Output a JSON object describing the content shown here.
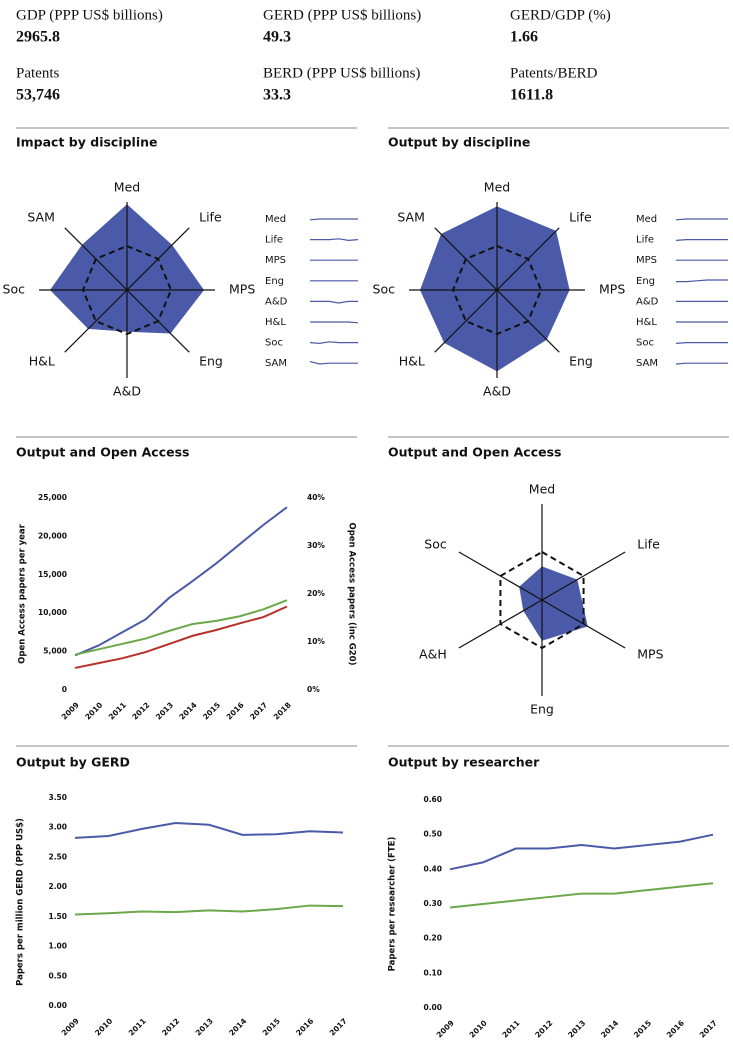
{
  "stats": [
    {
      "label": "GDP (PPP US$ billions)",
      "value": "2965.8"
    },
    {
      "label": "GERD (PPP US$ billions)",
      "value": "49.3"
    },
    {
      "label": "GERD/GDP (%)",
      "value": "1.66"
    },
    {
      "label": "Patents",
      "value": "53,746"
    },
    {
      "label": "BERD (PPP US$ billions)",
      "value": "33.3"
    },
    {
      "label": "Patents/BERD",
      "value": "1611.8"
    }
  ],
  "chart_data": [
    {
      "type": "radar",
      "title": "Impact by discipline",
      "categories": [
        "Med",
        "Life",
        "MPS",
        "Eng",
        "A&D",
        "H&L",
        "Soc",
        "SAM"
      ],
      "values": [
        1.95,
        1.45,
        1.75,
        1.4,
        0.95,
        1.25,
        1.75,
        1.45
      ],
      "reference": 1,
      "rlim": [
        0,
        2
      ],
      "color": "#4a5aa8",
      "sparklines": [
        {
          "name": "Med",
          "values": [
            0.9,
            1,
            1,
            1,
            1,
            1
          ]
        },
        {
          "name": "Life",
          "values": [
            1,
            1,
            1,
            1.1,
            0.9,
            1
          ]
        },
        {
          "name": "MPS",
          "values": [
            1,
            1,
            1,
            1,
            1,
            1
          ]
        },
        {
          "name": "Eng",
          "values": [
            1,
            1,
            1,
            1,
            1,
            1
          ]
        },
        {
          "name": "A&D",
          "values": [
            1,
            1,
            1,
            0.8,
            1,
            1
          ]
        },
        {
          "name": "H&L",
          "values": [
            1,
            1,
            1,
            1,
            1,
            0.9
          ]
        },
        {
          "name": "Soc",
          "values": [
            1,
            0.9,
            1.1,
            1,
            1,
            1
          ]
        },
        {
          "name": "SAM",
          "values": [
            1.2,
            0.9,
            1,
            1,
            1,
            1
          ]
        }
      ],
      "spark_ylim": [
        0.5,
        1.5
      ]
    },
    {
      "type": "radar",
      "title": "Output by discipline",
      "categories": [
        "Med",
        "Life",
        "MPS",
        "Eng",
        "A&D",
        "H&L",
        "Soc",
        "SAM"
      ],
      "values": [
        1.9,
        1.9,
        1.65,
        1.6,
        1.85,
        1.7,
        1.75,
        1.8
      ],
      "reference": 1,
      "rlim": [
        0,
        2
      ],
      "color": "#4a5aa8",
      "sparklines": [
        {
          "name": "Med",
          "values": [
            0.9,
            1,
            1,
            1,
            1,
            1
          ]
        },
        {
          "name": "Life",
          "values": [
            0.9,
            1,
            1,
            1,
            1,
            1
          ]
        },
        {
          "name": "MPS",
          "values": [
            1,
            1,
            1,
            1,
            1,
            1
          ]
        },
        {
          "name": "Eng",
          "values": [
            0.9,
            0.9,
            1,
            1.1,
            1.1,
            1.1
          ]
        },
        {
          "name": "A&D",
          "values": [
            1,
            1,
            1,
            1,
            1,
            1
          ]
        },
        {
          "name": "H&L",
          "values": [
            1,
            1,
            1,
            1,
            1,
            1
          ]
        },
        {
          "name": "Soc",
          "values": [
            0.9,
            1,
            1,
            1,
            1,
            1
          ]
        },
        {
          "name": "SAM",
          "values": [
            0.9,
            1,
            1,
            1,
            1,
            1
          ]
        }
      ],
      "spark_ylim": [
        0.5,
        1.5
      ]
    },
    {
      "type": "line",
      "title": "Output and Open Access",
      "categories": [
        "2009",
        "2010",
        "2011",
        "2012",
        "2013",
        "2014",
        "2015",
        "2016",
        "2017",
        "2018"
      ],
      "ylabel": "Open Access papers per year",
      "y2label": "Open Access papers (inc G20)",
      "ylim": [
        0,
        25000
      ],
      "yticks": [
        {
          "value": 0,
          "label": "0"
        },
        {
          "value": 5000,
          "label": "5,000"
        },
        {
          "value": 10000,
          "label": "10,000"
        },
        {
          "value": 15000,
          "label": "15,000"
        },
        {
          "value": 20000,
          "label": "20,000"
        },
        {
          "value": 25000,
          "label": "25,000"
        }
      ],
      "y2lim": [
        0,
        40
      ],
      "y2ticks": [
        {
          "value": 0,
          "label": "0%"
        },
        {
          "value": 10,
          "label": "10%"
        },
        {
          "value": 20,
          "label": "20%"
        },
        {
          "value": 30,
          "label": "30%"
        },
        {
          "value": 40,
          "label": "40%"
        }
      ],
      "series": [
        {
          "color": "#4a5aa8",
          "values": [
            4500,
            5800,
            7500,
            9200,
            12000,
            14200,
            16500,
            19000,
            21500,
            23800
          ]
        },
        {
          "color": "#6aa84a",
          "values": [
            4600,
            5300,
            6000,
            6700,
            7700,
            8600,
            9000,
            9600,
            10500,
            11700
          ]
        },
        {
          "color": "#b8302a",
          "axis": "y2",
          "values": [
            4.6,
            5.6,
            6.6,
            7.9,
            9.6,
            11.3,
            12.5,
            13.9,
            15.2,
            17.4
          ]
        }
      ]
    },
    {
      "type": "radar",
      "title": "Output and Open Access",
      "categories": [
        "Med",
        "Life",
        "MPS",
        "Eng",
        "A&H",
        "Soc"
      ],
      "values": [
        0.7,
        0.85,
        1.1,
        0.85,
        0.45,
        0.55
      ],
      "reference": 1,
      "rlim": [
        0,
        2
      ],
      "color": "#4a5aa8"
    },
    {
      "type": "line",
      "title": "Output by GERD",
      "categories": [
        "2009",
        "2010",
        "2011",
        "2012",
        "2013",
        "2014",
        "2015",
        "2016",
        "2017"
      ],
      "ylabel": "Papers per million GERD (PPP US$)",
      "ylim": [
        0,
        3.5
      ],
      "yticks": [
        {
          "value": 0,
          "label": "0.00"
        },
        {
          "value": 0.5,
          "label": "0.50"
        },
        {
          "value": 1,
          "label": "1.00"
        },
        {
          "value": 1.5,
          "label": "1.50"
        },
        {
          "value": 2,
          "label": "2.00"
        },
        {
          "value": 2.5,
          "label": "2.50"
        },
        {
          "value": 3,
          "label": "3.00"
        },
        {
          "value": 3.5,
          "label": "3.50"
        }
      ],
      "series": [
        {
          "color": "#4a5aa8",
          "values": [
            2.83,
            2.86,
            2.98,
            3.08,
            3.05,
            2.88,
            2.89,
            2.94,
            2.92
          ]
        },
        {
          "color": "#6aa84a",
          "values": [
            1.54,
            1.56,
            1.59,
            1.58,
            1.61,
            1.59,
            1.63,
            1.69,
            1.68
          ]
        }
      ]
    },
    {
      "type": "line",
      "title": "Output by researcher",
      "categories": [
        "2009",
        "2010",
        "2011",
        "2012",
        "2013",
        "2014",
        "2015",
        "2016",
        "2017"
      ],
      "ylabel": "Papers per researcher (FTE)",
      "ylim": [
        0,
        0.6
      ],
      "yticks": [
        {
          "value": 0,
          "label": "0.00"
        },
        {
          "value": 0.1,
          "label": "0.10"
        },
        {
          "value": 0.2,
          "label": "0.20"
        },
        {
          "value": 0.3,
          "label": "0.30"
        },
        {
          "value": 0.4,
          "label": "0.40"
        },
        {
          "value": 0.5,
          "label": "0.50"
        },
        {
          "value": 0.6,
          "label": "0.60"
        }
      ],
      "series": [
        {
          "color": "#4a5aa8",
          "values": [
            0.4,
            0.42,
            0.46,
            0.46,
            0.47,
            0.46,
            0.47,
            0.48,
            0.5
          ]
        },
        {
          "color": "#6aa84a",
          "values": [
            0.29,
            0.3,
            0.31,
            0.32,
            0.33,
            0.33,
            0.34,
            0.35,
            0.36
          ]
        }
      ]
    }
  ]
}
